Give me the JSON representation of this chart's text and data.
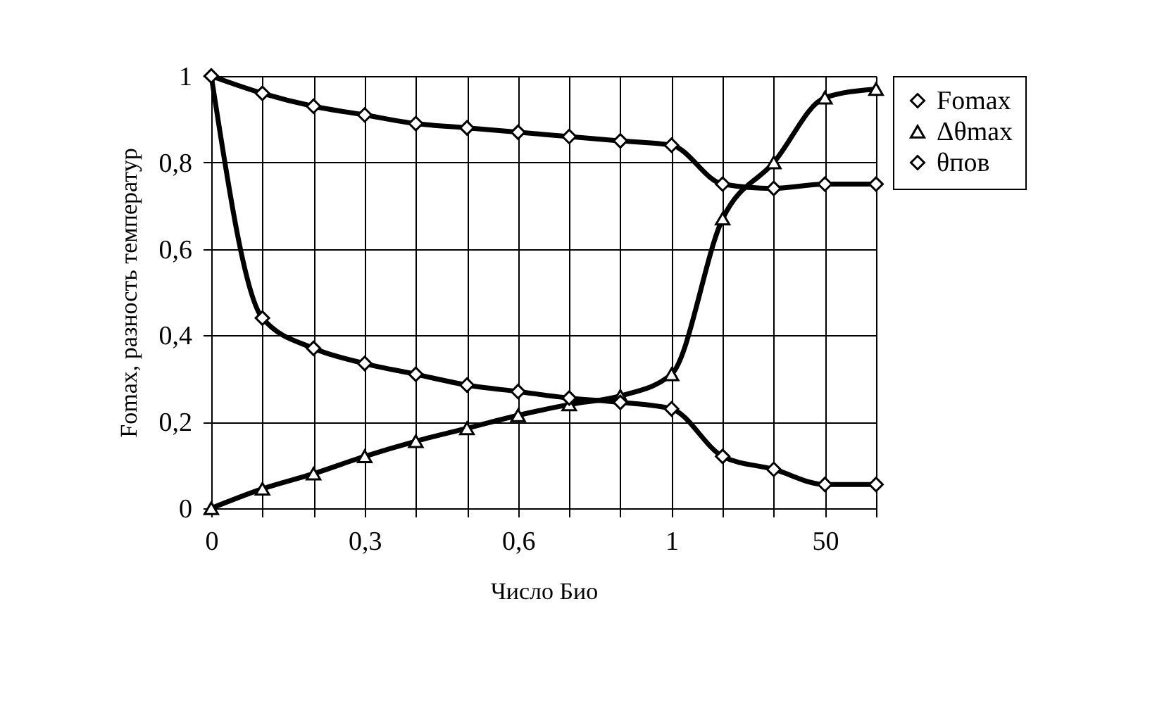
{
  "chart_data": {
    "type": "line",
    "xlabel": "Число Био",
    "ylabel": "Fomax, разность температур",
    "categories": [
      "0",
      null,
      null,
      "0,3",
      null,
      null,
      "0,6",
      null,
      null,
      "1",
      null,
      null,
      "50",
      null
    ],
    "series": [
      {
        "name": "Fomax",
        "color": "#000000",
        "marker": "diamond",
        "values": [
          1,
          0.96,
          0.93,
          0.91,
          0.89,
          0.88,
          0.87,
          0.86,
          0.85,
          0.84,
          0.75,
          0.74,
          0.75,
          0.75
        ]
      },
      {
        "name": "Δθmax",
        "color": "#000000",
        "marker": "triangle",
        "values": [
          0,
          0.045,
          0.08,
          0.12,
          0.155,
          0.185,
          0.215,
          0.24,
          0.26,
          0.31,
          0.67,
          0.8,
          0.95,
          0.97
        ]
      },
      {
        "name": "θпов",
        "color": "#000000",
        "marker": "diamond",
        "values": [
          1,
          0.44,
          0.37,
          0.335,
          0.31,
          0.285,
          0.27,
          0.255,
          0.245,
          0.23,
          0.12,
          0.09,
          0.055,
          0.055
        ]
      }
    ],
    "ylim": [
      0,
      1
    ],
    "yticks": [
      0,
      {
        "value": 0.2,
        "label": "0,2"
      },
      {
        "value": 0.4,
        "label": "0,4"
      },
      {
        "value": 0.6,
        "label": "0,6"
      },
      {
        "value": 0.8,
        "label": "0,8"
      },
      1
    ],
    "grid": true,
    "legend": "right",
    "line_style": "solid"
  }
}
